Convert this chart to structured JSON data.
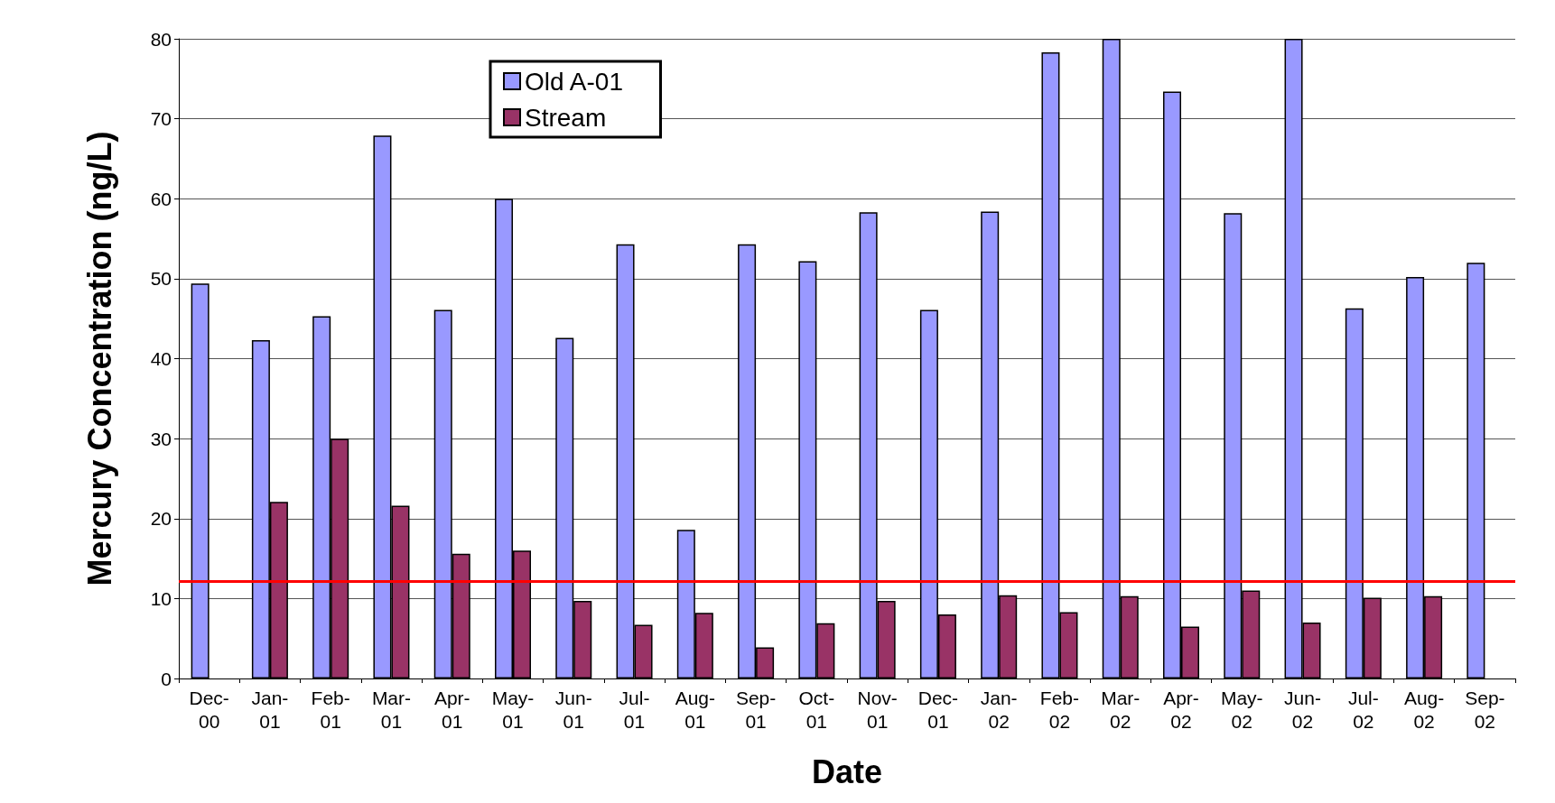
{
  "chart_data": {
    "type": "bar",
    "xlabel": "Date",
    "ylabel": "Mercury Concentration (ng/L)",
    "categories": [
      "Dec-00",
      "Jan-01",
      "Feb-01",
      "Mar-01",
      "Apr-01",
      "May-01",
      "Jun-01",
      "Jul-01",
      "Aug-01",
      "Sep-01",
      "Oct-01",
      "Nov-01",
      "Dec-01",
      "Jan-02",
      "Feb-02",
      "Mar-02",
      "Apr-02",
      "May-02",
      "Jun-02",
      "Jul-02",
      "Aug-02",
      "Sep-02"
    ],
    "series": [
      {
        "name": "Old A-01",
        "color": "#9999ff",
        "values": [
          49.4,
          42.3,
          45.3,
          67.9,
          46.1,
          60.0,
          42.6,
          54.3,
          18.6,
          54.3,
          52.2,
          58.3,
          46.1,
          58.4,
          78.3,
          80,
          73.4,
          58.2,
          80,
          46.3,
          50.2,
          52
        ]
      },
      {
        "name": "Stream",
        "color": "#993366",
        "values": [
          null,
          22.1,
          30.0,
          21.6,
          15.6,
          16.0,
          9.7,
          6.7,
          8.2,
          3.9,
          6.9,
          9.7,
          8.0,
          10.4,
          8.3,
          10.3,
          6.5,
          11.0,
          7.0,
          10.1,
          10.3,
          null
        ]
      }
    ],
    "ylim": [
      0,
      80
    ],
    "yticks": [
      0,
      10,
      20,
      30,
      40,
      50,
      60,
      70,
      80
    ],
    "grid": "y",
    "legend": "top left",
    "ref_lines": [
      {
        "axis": "y",
        "value": 12.2,
        "color": "#ff0000"
      }
    ]
  }
}
